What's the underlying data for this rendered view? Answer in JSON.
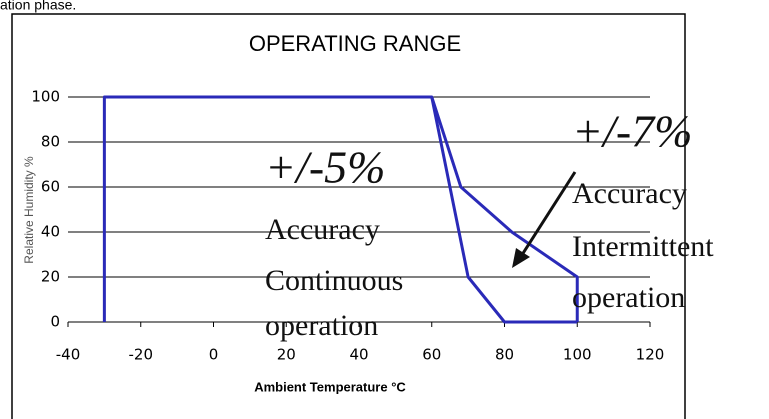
{
  "caption": "ation phase.",
  "chart_data": {
    "type": "line",
    "title": "OPERATING RANGE",
    "x_label": "Ambient Temperature °C",
    "y_label": "Relative Humidity %",
    "xlim": [
      -40,
      120
    ],
    "ylim": [
      0,
      100
    ],
    "xticks": [
      -40,
      -20,
      0,
      20,
      40,
      60,
      80,
      100,
      120
    ],
    "yticks": [
      0,
      20,
      40,
      60,
      80,
      100
    ],
    "grid": true,
    "color": "#2a2ab8",
    "series": [
      {
        "x": [
          -30,
          -30,
          60,
          70,
          80,
          100
        ],
        "values": [
          0,
          100,
          100,
          20,
          0,
          0
        ]
      },
      {
        "x": [
          60,
          68,
          82,
          100,
          100
        ],
        "values": [
          100,
          60,
          40,
          20,
          0
        ]
      }
    ],
    "annotations": [
      {
        "text": "+/-5%"
      },
      {
        "text": "Accuracy"
      },
      {
        "text": "Continuous"
      },
      {
        "text": "operation"
      },
      {
        "text": "+/-7%"
      },
      {
        "text": "Accuracy"
      },
      {
        "text": "Intermittent"
      },
      {
        "text": "operation"
      }
    ]
  }
}
